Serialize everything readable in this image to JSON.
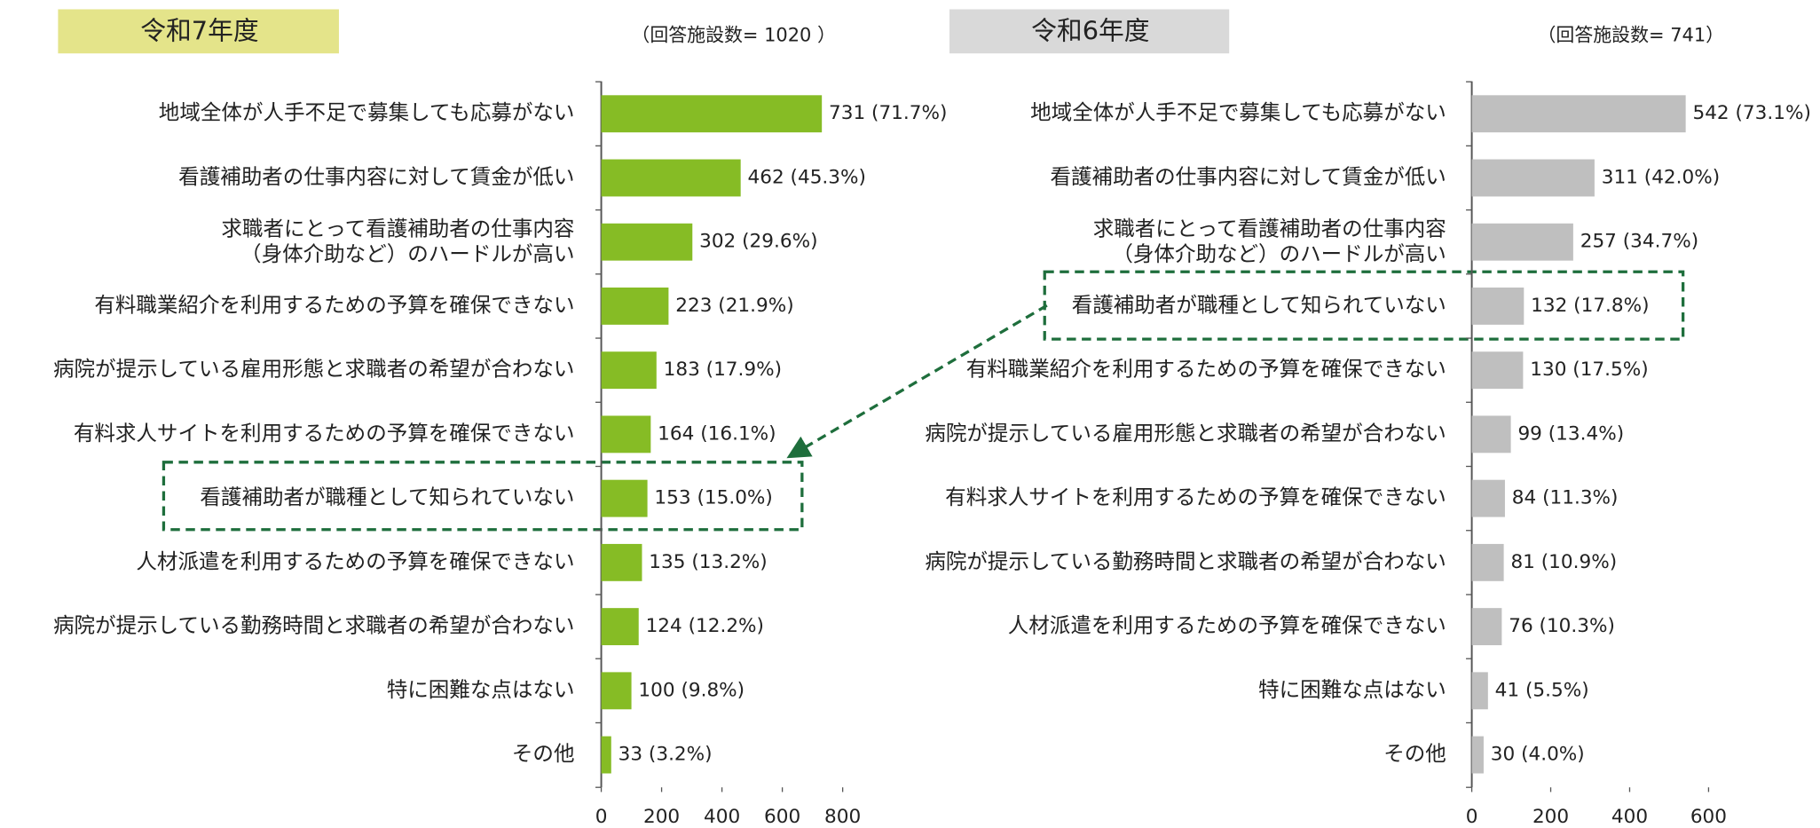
{
  "chart_data": [
    {
      "type": "bar",
      "orientation": "horizontal",
      "title": "令和7年度",
      "subtitle": "（回答施設数= 1020 ）",
      "color": "#86bc25",
      "title_color": "#e4e48a",
      "categories": [
        "地域全体が人手不足で募集しても応募がない",
        "看護補助者の仕事内容に対して賃金が低い",
        "求職者にとって看護補助者の仕事内容\n（身体介助など）のハードルが高い",
        "有料職業紹介を利用するための予算を確保できない",
        "病院が提示している雇用形態と求職者の希望が合わない",
        "有料求人サイトを利用するための予算を確保できない",
        "看護補助者が職種として知られていない",
        "人材派遣を利用するための予算を確保できない",
        "病院が提示している勤務時間と求職者の希望が合わない",
        "特に困難な点はない",
        "その他"
      ],
      "values": [
        731,
        462,
        302,
        223,
        183,
        164,
        153,
        135,
        124,
        100,
        33
      ],
      "value_labels": [
        "731 (71.7%)",
        "462 (45.3%)",
        "302 (29.6%)",
        "223 (21.9%)",
        "183 (17.9%)",
        "164 (16.1%)",
        "153 (15.0%)",
        "135 (13.2%)",
        "124 (12.2%)",
        "100 (9.8%)",
        "33 (3.2%)"
      ],
      "xlim": [
        0,
        800
      ],
      "xticks": [
        0,
        200,
        400,
        600,
        800
      ]
    },
    {
      "type": "bar",
      "orientation": "horizontal",
      "title": "令和6年度",
      "subtitle": "（回答施設数= 741）",
      "color": "#bfbfbf",
      "title_color": "#d9d9d9",
      "categories": [
        "地域全体が人手不足で募集しても応募がない",
        "看護補助者の仕事内容に対して賃金が低い",
        "求職者にとって看護補助者の仕事内容\n（身体介助など）のハードルが高い",
        "看護補助者が職種として知られていない",
        "有料職業紹介を利用するための予算を確保できない",
        "病院が提示している雇用形態と求職者の希望が合わない",
        "有料求人サイトを利用するための予算を確保できない",
        "病院が提示している勤務時間と求職者の希望が合わない",
        "人材派遣を利用するための予算を確保できない",
        "特に困難な点はない",
        "その他"
      ],
      "values": [
        542,
        311,
        257,
        132,
        130,
        99,
        84,
        81,
        76,
        41,
        30
      ],
      "value_labels": [
        "542 (73.1%)",
        "311 (42.0%)",
        "257 (34.7%)",
        "132 (17.8%)",
        "130 (17.5%)",
        "99 (13.4%)",
        "84 (11.3%)",
        "81 (10.9%)",
        "76 (10.3%)",
        "41 (5.5%)",
        "30 (4.0%)"
      ],
      "xlim": [
        0,
        600
      ],
      "xticks": [
        0,
        200,
        400,
        600
      ]
    }
  ]
}
